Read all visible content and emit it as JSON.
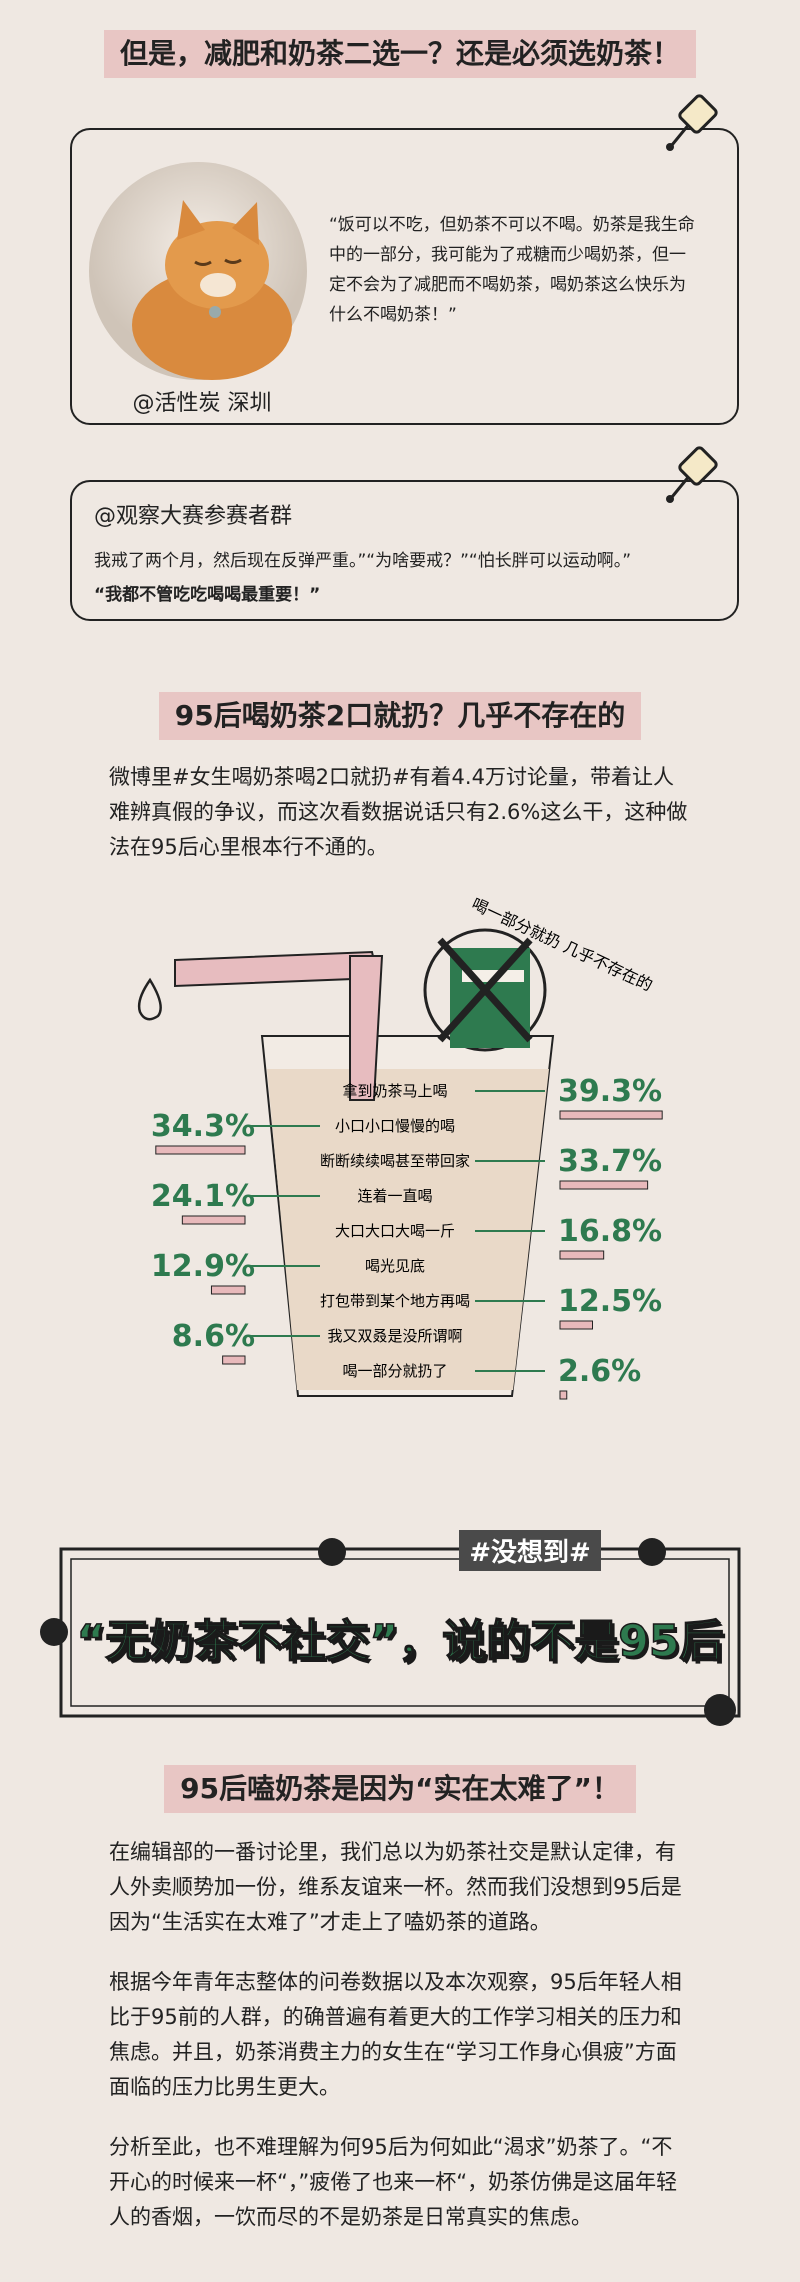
{
  "banner1": "但是，减肥和奶茶二选一？还是必须选奶茶！",
  "card1": {
    "quote": "“饭可以不吃，但奶茶不可以不喝。奶茶是我生命中的一部分，我可能为了戒糖而少喝奶茶，但一定不会为了减肥而不喝奶茶，喝奶茶这么快乐为什么不喝奶茶！”",
    "author": "@活性炭  深圳"
  },
  "card2": {
    "title": "@观察大赛参赛者群",
    "text": "我戒了两个月，然后现在反弹严重。”“为啥要戒？”“怕长胖可以运动啊。”",
    "bold": "“我都不管吃吃喝喝最重要！”"
  },
  "section2": {
    "heading": "95后喝奶茶2口就扔？几乎不存在的",
    "paragraph": "微博里#女生喝奶茶喝2口就扔#有着4.4万讨论量，带着让人难辨真假的争议，而这次看数据说话只有2.6%这么干，这种做法在95后心里根本行不通的。"
  },
  "chart_data": {
    "type": "bar",
    "categories": [
      "拿到奶茶马上喝",
      "小口小口慢慢的喝",
      "断断续续喝甚至带回家",
      "连着一直喝",
      "大口大口大喝一斤",
      "喝光见底",
      "打包带到某个地方再喝",
      "我又双叒是没所谓啊",
      "喝一部分就扔了"
    ],
    "values": [
      39.3,
      34.3,
      33.7,
      24.1,
      16.8,
      12.9,
      12.5,
      8.6,
      2.6
    ],
    "value_labels": [
      "39.3%",
      "34.3%",
      "33.7%",
      "24.1%",
      "16.8%",
      "12.9%",
      "12.5%",
      "8.6%",
      "2.6%"
    ],
    "color": "#e8b9bb",
    "label_color": "#2e7a4f",
    "annotation": "喝一部分就扔 几乎不存在的"
  },
  "banner2": {
    "tag": "#没想到#",
    "headline": "“无奶茶不社交”，说的不是95后"
  },
  "section3": {
    "heading": "95后嗑奶茶是因为“实在太难了”！",
    "paragraphs": [
      "在编辑部的一番讨论里，我们总以为奶茶社交是默认定律，有人外卖顺势加一份，维系友谊来一杯。然而我们没想到95后是因为“生活实在太难了”才走上了嗑奶茶的道路。",
      "根据今年青年志整体的问卷数据以及本次观察，95后年轻人相比于95前的人群，的确普遍有着更大的工作学习相关的压力和焦虑。并且，奶茶消费主力的女生在“学习工作身心俱疲”方面面临的压力比男生更大。",
      "分析至此，也不难理解为何95后为何如此“渴求”奶茶了。“不开心的时候来一杯“，”疲倦了也来一杯“，奶茶仿佛是这届年轻人的香烟，一饮而尽的不是奶茶是日常真实的焦虑。"
    ]
  }
}
